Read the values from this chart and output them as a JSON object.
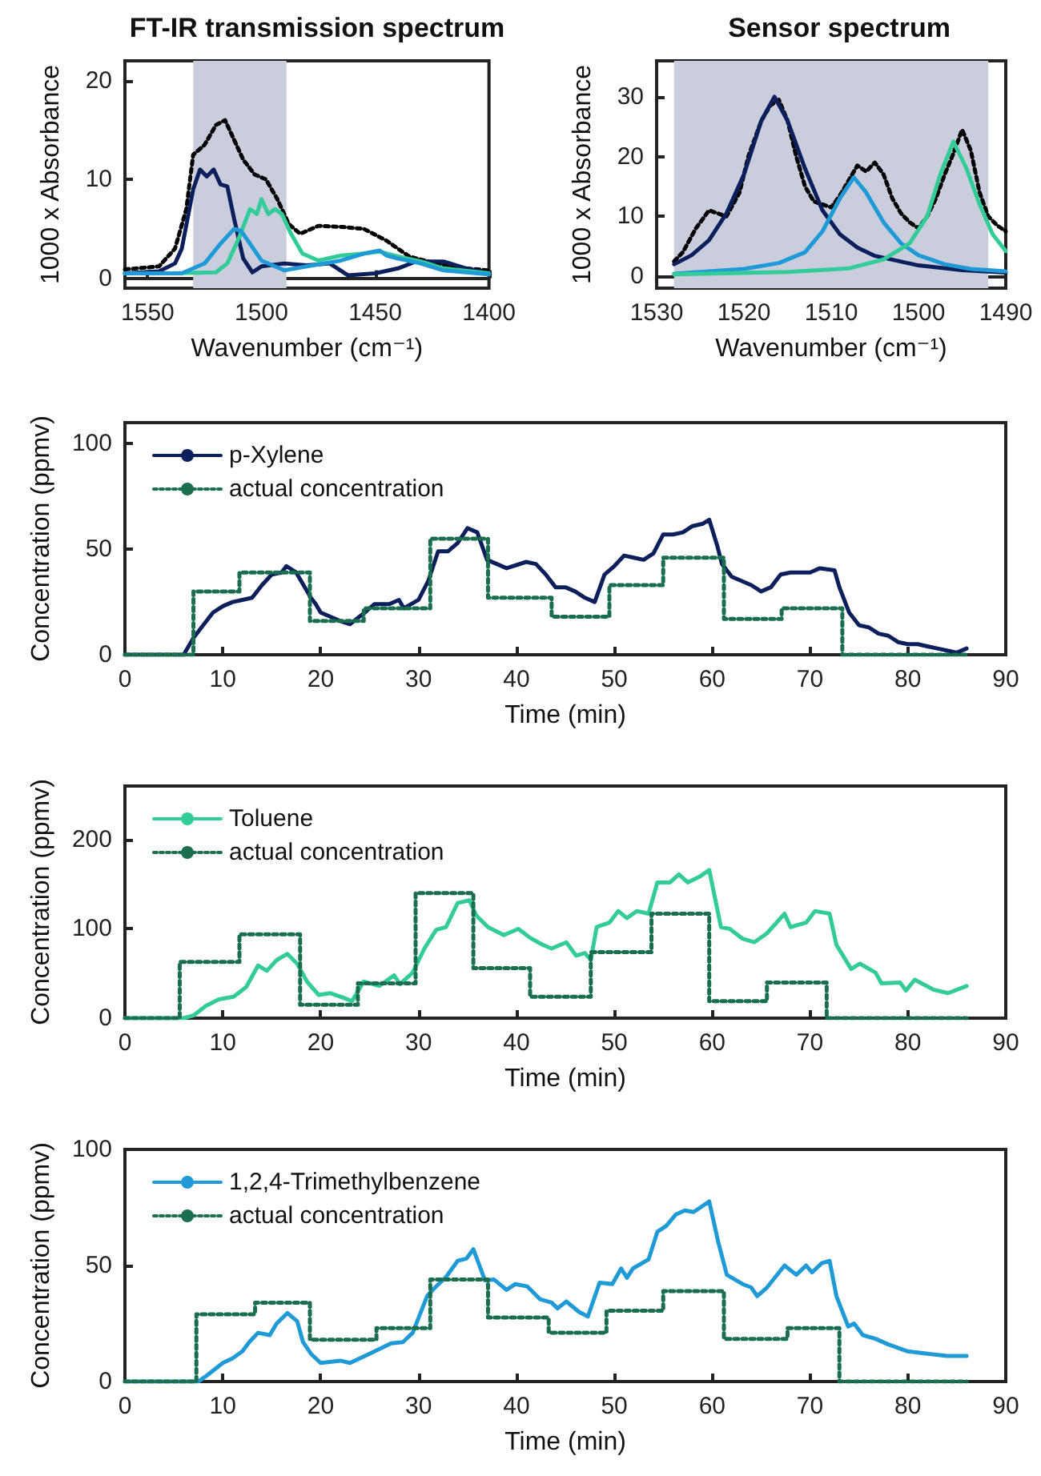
{
  "chart_data": [
    {
      "type": "line",
      "title": "FT-IR transmission spectrum",
      "xlabel": "Wavenumber (cm⁻¹)",
      "ylabel": "1000 x Absorbance",
      "xlim": [
        1560,
        1400
      ],
      "xticks": [
        1550,
        1500,
        1450,
        1400
      ],
      "ylim": [
        -1,
        22
      ],
      "yticks": [
        0,
        10,
        20
      ],
      "legend": false,
      "bands": [
        {
          "axis": "x",
          "from": 1530,
          "to": 1489,
          "color": "#c9cddc"
        }
      ],
      "series": [
        {
          "color": "#000000",
          "line_style": "dotted",
          "x": [
            1560,
            1545,
            1538,
            1533,
            1530,
            1525,
            1520,
            1516,
            1512,
            1508,
            1503,
            1498,
            1493,
            1488,
            1483,
            1475,
            1465,
            1455,
            1445,
            1435,
            1425,
            1415,
            1400
          ],
          "values": [
            0.9,
            1.2,
            3,
            7,
            12.5,
            13.5,
            15.5,
            16,
            14,
            12,
            10.5,
            10,
            8,
            5.5,
            4.5,
            5.3,
            5.2,
            5,
            3.8,
            2.2,
            1.6,
            1.1,
            0.8
          ]
        },
        {
          "color": "#0b1f5c",
          "x": [
            1560,
            1545,
            1538,
            1535,
            1530,
            1527,
            1524,
            1521,
            1518,
            1515,
            1512,
            1508,
            1504,
            1500,
            1490,
            1480,
            1470,
            1462,
            1450,
            1440,
            1432,
            1420,
            1410,
            1400
          ],
          "values": [
            0.5,
            0.7,
            1.5,
            3,
            9,
            11,
            10.3,
            11,
            9.5,
            9.3,
            6,
            2,
            0.6,
            1.2,
            1.5,
            1.3,
            1.5,
            0.3,
            0.5,
            1,
            1.7,
            1.7,
            1,
            0.5
          ]
        },
        {
          "color": "#33cc99",
          "x": [
            1560,
            1540,
            1520,
            1515,
            1510,
            1505,
            1502,
            1500,
            1497,
            1494,
            1491,
            1487,
            1482,
            1475,
            1465,
            1455,
            1448,
            1440,
            1430,
            1420,
            1400
          ],
          "values": [
            0.5,
            0.5,
            0.6,
            1.5,
            4,
            7,
            6.5,
            8,
            6.5,
            7,
            6.5,
            4.5,
            2.5,
            1.8,
            2.3,
            2.5,
            2.7,
            2.2,
            1.7,
            1,
            0.5
          ]
        },
        {
          "color": "#1f9ad6",
          "x": [
            1560,
            1535,
            1525,
            1518,
            1512,
            1509,
            1505,
            1500,
            1490,
            1480,
            1465,
            1455,
            1448,
            1445,
            1440,
            1430,
            1420,
            1400
          ],
          "values": [
            0.5,
            0.5,
            1.5,
            3.5,
            5,
            4.8,
            3.5,
            1.8,
            0.8,
            1.2,
            1.8,
            2.5,
            2.8,
            2.3,
            2,
            1.5,
            0.8,
            0.4
          ]
        }
      ]
    },
    {
      "type": "line",
      "title": "Sensor spectrum",
      "xlabel": "Wavenumber (cm⁻¹)",
      "ylabel": "1000 x Absorbance",
      "xlim": [
        1530,
        1490
      ],
      "xticks": [
        1530,
        1520,
        1510,
        1500,
        1490
      ],
      "ylim": [
        -2,
        36
      ],
      "yticks": [
        0,
        10,
        20,
        30
      ],
      "legend": false,
      "bands": [
        {
          "axis": "x",
          "from": 1528,
          "to": 1492,
          "color": "#c9cddc"
        }
      ],
      "series": [
        {
          "color": "#000000",
          "line_style": "dotted",
          "x": [
            1528,
            1527,
            1525.5,
            1524,
            1523,
            1522,
            1520.5,
            1519.5,
            1518,
            1517,
            1516,
            1515,
            1514,
            1513,
            1512,
            1511,
            1510,
            1509,
            1508,
            1507,
            1506,
            1505,
            1504,
            1503,
            1502,
            1501,
            1500,
            1499,
            1498,
            1497,
            1496,
            1495,
            1494,
            1493,
            1492,
            1491,
            1490
          ],
          "values": [
            2.5,
            4,
            8,
            11,
            10.5,
            10,
            14,
            20,
            26,
            28.5,
            29.5,
            26,
            20,
            15,
            12.5,
            12,
            11.5,
            13.5,
            16,
            18.5,
            17.5,
            19,
            17,
            13,
            10.5,
            9,
            8,
            10,
            13,
            17,
            20.5,
            24.5,
            21,
            14,
            10,
            8.5,
            7.5
          ]
        },
        {
          "color": "#0b1f5c",
          "x": [
            1528,
            1526,
            1524,
            1522,
            1520,
            1518,
            1516.5,
            1515,
            1513,
            1511,
            1509,
            1507,
            1505,
            1500,
            1495,
            1490
          ],
          "values": [
            2,
            3.5,
            6,
            10.5,
            17,
            26,
            30,
            26,
            18,
            11,
            7,
            4.8,
            3.4,
            1.8,
            1,
            0.6
          ]
        },
        {
          "color": "#1f9ad6",
          "x": [
            1528,
            1520,
            1516,
            1513,
            1511,
            1509,
            1507.4,
            1506,
            1504,
            1502,
            1500,
            1497,
            1494,
            1490
          ],
          "values": [
            0.4,
            1.2,
            2.2,
            4,
            7.5,
            13,
            16.5,
            14,
            9,
            5.5,
            3.5,
            2,
            1.2,
            0.8
          ]
        },
        {
          "color": "#33cc99",
          "x": [
            1528,
            1515,
            1508,
            1504,
            1501,
            1499,
            1497.5,
            1496,
            1494.5,
            1493,
            1491.5,
            1490
          ],
          "values": [
            0.3,
            0.7,
            1.3,
            2.8,
            5.5,
            10,
            17,
            22.5,
            18,
            12,
            7,
            4.2
          ]
        }
      ]
    },
    {
      "type": "line",
      "xlabel": "Time (min)",
      "ylabel": "Concentration (ppmv)",
      "xlim": [
        0,
        90
      ],
      "xticks": [
        0,
        10,
        20,
        30,
        40,
        50,
        60,
        70,
        80,
        90
      ],
      "ylim": [
        0,
        110
      ],
      "yticks": [
        0,
        50,
        100
      ],
      "legend": "top left",
      "series": [
        {
          "name": "p-Xylene",
          "color": "#0b1f5c",
          "x": [
            0,
            6,
            7,
            8,
            9,
            10,
            11,
            12,
            13,
            14,
            15,
            16,
            16.5,
            17.5,
            18,
            19,
            19.5,
            20,
            22,
            23,
            24.5,
            25.5,
            27,
            28,
            28.5,
            30,
            31,
            32,
            33,
            34,
            35,
            36,
            37,
            38,
            39,
            41,
            42,
            43,
            44,
            45,
            46,
            47,
            48,
            49,
            50,
            51,
            52,
            53,
            54,
            55,
            56,
            57,
            58,
            59,
            59.7,
            60.5,
            61,
            62,
            63,
            64,
            65,
            66,
            67,
            68,
            70,
            71,
            72.5,
            73,
            74,
            75,
            76,
            77,
            78,
            79,
            80,
            81,
            82,
            83,
            84,
            85,
            86
          ],
          "values": [
            0,
            0,
            8,
            14,
            20,
            23,
            25,
            26,
            27,
            33,
            38,
            39,
            42,
            39,
            35,
            27,
            24,
            20,
            16,
            14.5,
            20,
            24,
            24,
            26,
            22,
            26,
            35,
            49,
            49,
            53,
            60,
            58,
            45,
            43,
            41,
            44,
            43,
            38,
            32,
            32,
            30,
            27,
            25,
            38,
            42,
            47,
            46,
            45,
            48,
            57,
            57,
            58,
            61,
            62,
            64,
            52,
            43,
            37,
            35,
            33,
            30,
            32,
            38,
            39,
            39,
            41,
            40,
            32,
            20,
            14,
            13,
            10,
            9,
            6,
            5,
            5,
            4,
            3,
            2,
            1,
            3
          ]
        },
        {
          "name": "actual concentration",
          "type": "step",
          "color": "#1a6e4e",
          "line_style": "dotted",
          "x": [
            0,
            7,
            11.7,
            18.9,
            24.4,
            31.2,
            37.1,
            43.6,
            49.5,
            55,
            61.2,
            67.1,
            73.3,
            86
          ],
          "values": [
            0,
            30,
            39,
            16,
            22,
            55,
            27,
            18,
            33,
            46,
            17,
            22,
            0,
            0
          ]
        }
      ]
    },
    {
      "type": "line",
      "xlabel": "Time (min)",
      "ylabel": "Concentration (ppmv)",
      "xlim": [
        0,
        90
      ],
      "xticks": [
        0,
        10,
        20,
        30,
        40,
        50,
        60,
        70,
        80,
        90
      ],
      "ylim": [
        0,
        260
      ],
      "yticks": [
        0,
        100,
        200
      ],
      "legend": "top left",
      "series": [
        {
          "name": "Toluene",
          "color": "#33cc99",
          "x": [
            0,
            6,
            7,
            8.3,
            9.6,
            11.1,
            12.4,
            13.6,
            14.5,
            15.5,
            16.6,
            17.6,
            18.6,
            19.8,
            21,
            22.3,
            23.2,
            24.4,
            26,
            27.5,
            28.1,
            29.4,
            30.6,
            31.8,
            32.8,
            34,
            35.2,
            35.9,
            37.1,
            38.7,
            40.2,
            41.4,
            42.7,
            43.6,
            45.1,
            46.1,
            47,
            47.6,
            48.2,
            49.5,
            50.4,
            51.3,
            52.3,
            53.5,
            54.4,
            55.7,
            56.6,
            57.5,
            58.8,
            59.7,
            60.9,
            61.8,
            63.1,
            64.3,
            65.6,
            67.4,
            68,
            69.6,
            70.5,
            72,
            72.7,
            74.2,
            75.1,
            76.7,
            77.3,
            79.2,
            79.8,
            80.7,
            82.6,
            84.1,
            86
          ],
          "values": [
            0,
            0,
            3,
            14,
            21,
            24,
            35,
            59,
            53,
            65,
            72,
            61,
            41,
            26,
            28,
            23,
            19,
            41,
            36,
            48,
            38,
            51,
            78,
            99,
            102,
            129,
            132,
            115,
            102,
            93,
            100,
            90,
            82,
            78,
            85,
            70,
            73,
            65,
            102,
            107,
            120,
            112,
            120,
            117,
            152,
            152,
            161,
            152,
            159,
            166,
            102,
            100,
            89,
            85,
            95,
            117,
            102,
            107,
            120,
            117,
            82,
            55,
            61,
            51,
            39,
            40,
            31,
            43,
            32,
            28,
            36
          ]
        },
        {
          "name": "actual concentration",
          "type": "step",
          "color": "#1a6e4e",
          "line_style": "dotted",
          "x": [
            0,
            5.6,
            11.7,
            17.9,
            23.8,
            29.7,
            35.6,
            41.4,
            47.6,
            53.8,
            59.7,
            65.6,
            71.7,
            86
          ],
          "values": [
            0,
            63,
            94,
            15,
            39,
            140,
            56,
            24,
            74,
            117,
            19,
            40,
            0,
            0
          ]
        }
      ]
    },
    {
      "type": "line",
      "xlabel": "Time (min)",
      "ylabel": "Concentration (ppmv)",
      "xlim": [
        0,
        90
      ],
      "xticks": [
        0,
        10,
        20,
        30,
        40,
        50,
        60,
        70,
        80,
        90
      ],
      "ylim": [
        0,
        100
      ],
      "yticks": [
        0,
        50,
        100
      ],
      "legend": "top left",
      "series": [
        {
          "name": "1,2,4-Trimethylbenzene",
          "color": "#1f9ad6",
          "x": [
            0,
            7.5,
            8.5,
            10,
            11,
            12,
            12.7,
            13.6,
            14.8,
            15.5,
            16.6,
            17.6,
            18.2,
            19,
            20,
            22,
            23,
            25,
            27.2,
            28.4,
            29.4,
            30.9,
            31.8,
            32.8,
            34,
            34.9,
            35.6,
            36.8,
            37.7,
            39,
            39.9,
            41.1,
            42.4,
            43.6,
            44.2,
            45.1,
            46.4,
            47.3,
            48.5,
            49.8,
            50.7,
            51.3,
            51.9,
            53.5,
            54.4,
            55.3,
            56.3,
            57.2,
            58.1,
            59.7,
            60.6,
            61.5,
            63.1,
            64,
            64.6,
            65.6,
            67.4,
            68.6,
            69.6,
            70.2,
            71.2,
            72,
            72.7,
            73.9,
            74.5,
            75.4,
            76.7,
            78,
            80,
            82,
            84,
            86
          ],
          "values": [
            0,
            0,
            3,
            8,
            10,
            13,
            17,
            21,
            20,
            25,
            29.5,
            26,
            17,
            12,
            8,
            9,
            8,
            12,
            16.5,
            17,
            21,
            37,
            41,
            45,
            52,
            53,
            57,
            43.5,
            44,
            39.5,
            42,
            41,
            35.5,
            34,
            31.5,
            34.5,
            30,
            28,
            42.6,
            42,
            48.7,
            44.7,
            48.7,
            52.6,
            64.5,
            67,
            72,
            73.7,
            73,
            77.6,
            60.5,
            46,
            42,
            40.5,
            36.8,
            40.5,
            50,
            46,
            50,
            47,
            51,
            52,
            36.8,
            23.7,
            25,
            20,
            18.4,
            16,
            13,
            12,
            11,
            11
          ]
        },
        {
          "name": "actual concentration",
          "type": "step",
          "color": "#1a6e4e",
          "line_style": "dotted",
          "x": [
            0,
            7.3,
            13.3,
            18.9,
            25.7,
            31.2,
            37.1,
            43.3,
            49.2,
            55,
            61.2,
            67.7,
            73,
            86
          ],
          "values": [
            0,
            29,
            34,
            18,
            23,
            44,
            27.6,
            21,
            30.5,
            39,
            18.4,
            23,
            0,
            0
          ]
        }
      ]
    }
  ]
}
